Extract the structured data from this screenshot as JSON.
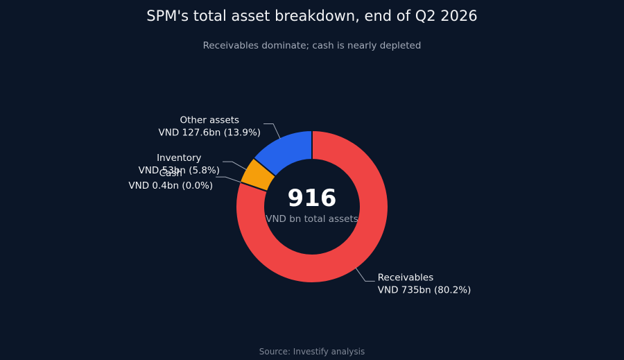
{
  "chart_data": {
    "type": "pie",
    "style": "donut",
    "title": "SPM's total asset breakdown, end of Q2 2026",
    "subtitle": "Receivables dominate; cash is nearly depleted",
    "center": {
      "value": "916",
      "label": "VND bn total assets"
    },
    "unit": "VND bn",
    "slices": [
      {
        "name": "Receivables",
        "value": 735,
        "value_label": "VND 735bn (80.2%)",
        "percent": 80.2,
        "color": "#ef4444"
      },
      {
        "name": "Cash",
        "value": 0.4,
        "value_label": "VND 0.4bn (0.0%)",
        "percent": 0.0,
        "color": "#22c55e"
      },
      {
        "name": "Inventory",
        "value": 53,
        "value_label": "VND 53bn (5.8%)",
        "percent": 5.8,
        "color": "#f59e0b"
      },
      {
        "name": "Other assets",
        "value": 127.6,
        "value_label": "VND 127.6bn (13.9%)",
        "percent": 13.9,
        "color": "#2563eb"
      }
    ],
    "source": "Source: Investify analysis"
  }
}
